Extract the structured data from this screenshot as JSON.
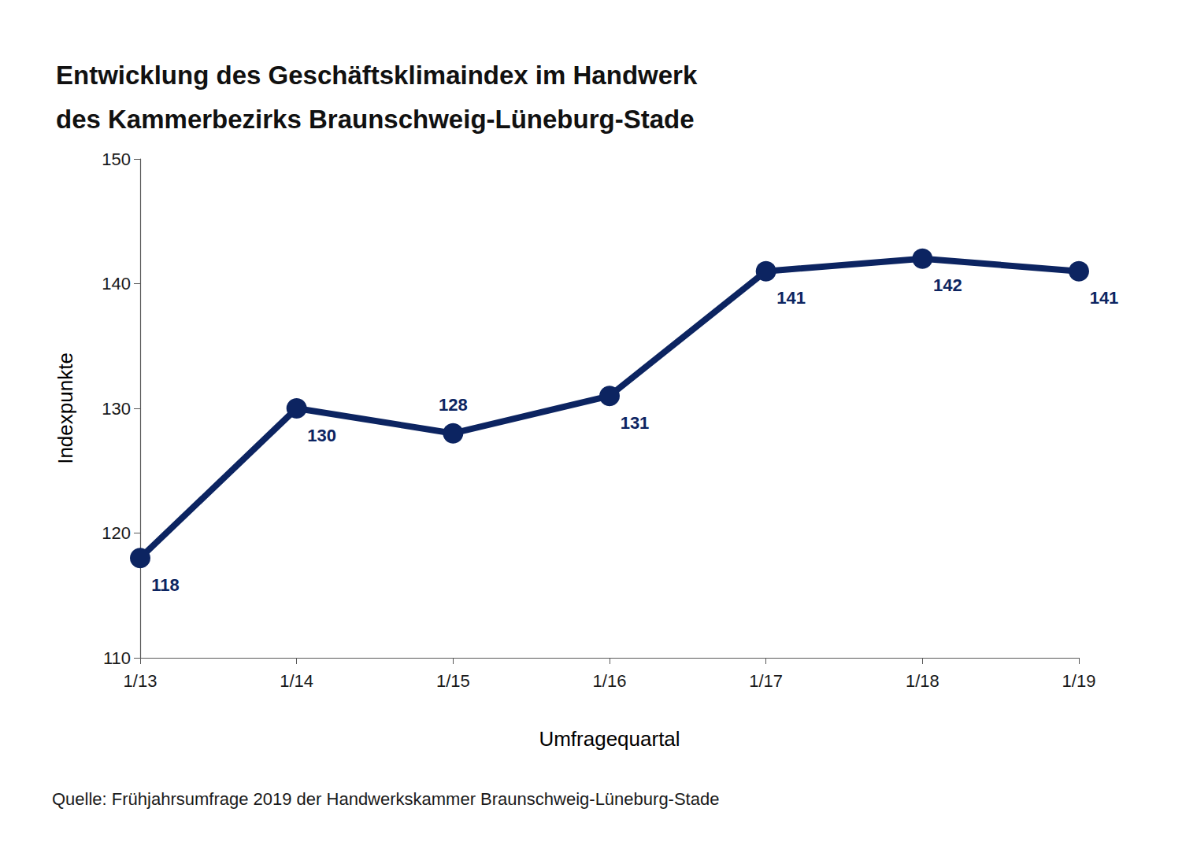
{
  "chart_data": {
    "type": "line",
    "title": "Entwicklung des Geschäftsklimaindex im Handwerk\ndes Kammerbezirks Braunschweig-Lüneburg-Stade",
    "x_label": "Umfragequartal",
    "y_label": "Indexpunkte",
    "source": "Quelle: Frühjahrsumfrage 2019 der Handwerkskammer Braunschweig-Lüneburg-Stade",
    "categories": [
      "1/13",
      "1/14",
      "1/15",
      "1/16",
      "1/17",
      "1/18",
      "1/19"
    ],
    "values": [
      118,
      130,
      128,
      131,
      141,
      142,
      141
    ],
    "color": "#0c2461",
    "ylim": [
      110,
      150
    ],
    "yticks": [
      110,
      120,
      130,
      140,
      150
    ],
    "grid": false,
    "data_labels": true,
    "marker": "circle",
    "line_style": "solid"
  }
}
